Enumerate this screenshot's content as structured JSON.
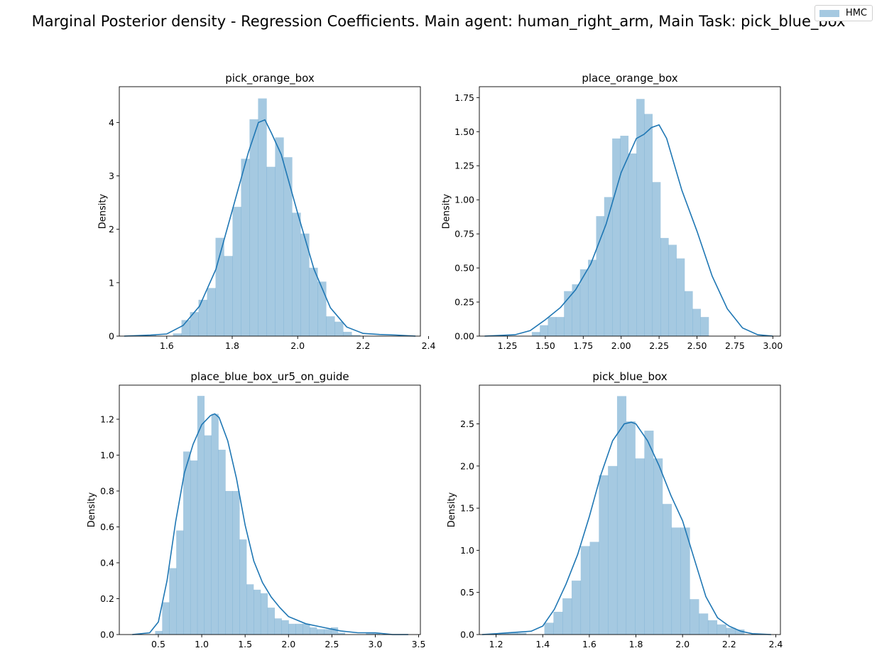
{
  "figure": {
    "suptitle": "Marginal Posterior density - Regression Coefficients. Main agent: human_right_arm, Main Task: pick_blue_box",
    "legend": [
      {
        "label": "HMC",
        "color": "#1f77b4"
      }
    ]
  },
  "chart_data": [
    {
      "type": "bar",
      "title": "pick_orange_box",
      "xlabel": "",
      "ylabel": "Density",
      "xlim": [
        1.455,
        2.375
      ],
      "ylim": [
        0,
        4.67
      ],
      "xticks": [
        1.6,
        1.8,
        2.0,
        2.2,
        2.4
      ],
      "xtick_labels": [
        "1.6",
        "1.8",
        "2.0",
        "2.2",
        "2.4"
      ],
      "yticks": [
        0,
        1,
        2,
        3,
        4
      ],
      "ytick_labels": [
        "0",
        "1",
        "2",
        "3",
        "4"
      ],
      "bin_edges": [
        1.515,
        1.541,
        1.567,
        1.593,
        1.619,
        1.645,
        1.671,
        1.697,
        1.723,
        1.749,
        1.775,
        1.801,
        1.827,
        1.853,
        1.879,
        1.905,
        1.931,
        1.957,
        1.983,
        2.009,
        2.035,
        2.061,
        2.087,
        2.113,
        2.139,
        2.165,
        2.191
      ],
      "bin_values": [
        0.02,
        0.02,
        0.0,
        0.0,
        0.05,
        0.3,
        0.45,
        0.68,
        0.9,
        1.84,
        1.5,
        2.42,
        3.32,
        4.06,
        4.45,
        3.17,
        3.72,
        3.35,
        2.31,
        1.92,
        1.28,
        1.02,
        0.37,
        0.27,
        0.08,
        0.02
      ],
      "series": [
        {
          "name": "HMC",
          "kde_x": [
            1.47,
            1.55,
            1.6,
            1.65,
            1.7,
            1.75,
            1.8,
            1.85,
            1.88,
            1.9,
            1.92,
            1.95,
            2.0,
            2.05,
            2.1,
            2.15,
            2.2,
            2.25,
            2.3,
            2.36
          ],
          "kde_y": [
            0.0,
            0.02,
            0.04,
            0.2,
            0.56,
            1.25,
            2.35,
            3.45,
            4.0,
            4.05,
            3.8,
            3.4,
            2.3,
            1.25,
            0.53,
            0.17,
            0.05,
            0.03,
            0.02,
            0.0
          ]
        }
      ]
    },
    {
      "type": "bar",
      "title": "place_orange_box",
      "xlabel": "",
      "ylabel": "Density",
      "xlim": [
        1.065,
        3.05
      ],
      "ylim": [
        0,
        1.83
      ],
      "xticks": [
        1.25,
        1.5,
        1.75,
        2.0,
        2.25,
        2.5,
        2.75,
        3.0
      ],
      "xtick_labels": [
        "1.25",
        "1.50",
        "1.75",
        "2.00",
        "2.25",
        "2.50",
        "2.75",
        "3.00"
      ],
      "yticks": [
        0,
        0.25,
        0.5,
        0.75,
        1.0,
        1.25,
        1.5,
        1.75
      ],
      "ytick_labels": [
        "0.00",
        "0.25",
        "0.50",
        "0.75",
        "1.00",
        "1.25",
        "1.50",
        "1.75"
      ],
      "bin_edges": [
        1.358,
        1.411,
        1.464,
        1.517,
        1.57,
        1.623,
        1.676,
        1.729,
        1.782,
        1.835,
        1.888,
        1.941,
        1.994,
        2.047,
        2.1,
        2.153,
        2.206,
        2.259,
        2.312,
        2.365,
        2.418,
        2.471,
        2.524,
        2.577,
        2.63,
        2.683,
        2.736,
        2.789
      ],
      "bin_values": [
        0.0,
        0.03,
        0.08,
        0.14,
        0.14,
        0.33,
        0.38,
        0.49,
        0.56,
        0.88,
        1.02,
        1.45,
        1.47,
        1.34,
        1.74,
        1.63,
        1.13,
        0.72,
        0.67,
        0.57,
        0.33,
        0.2,
        0.14,
        0.0,
        0.0,
        0.0,
        0.0
      ],
      "series": [
        {
          "name": "HMC",
          "kde_x": [
            1.1,
            1.3,
            1.4,
            1.5,
            1.6,
            1.7,
            1.8,
            1.9,
            2.0,
            2.1,
            2.15,
            2.2,
            2.25,
            2.3,
            2.4,
            2.5,
            2.6,
            2.7,
            2.8,
            2.9,
            3.0
          ],
          "kde_y": [
            0.0,
            0.01,
            0.04,
            0.12,
            0.21,
            0.34,
            0.53,
            0.82,
            1.2,
            1.45,
            1.48,
            1.53,
            1.55,
            1.45,
            1.07,
            0.77,
            0.44,
            0.2,
            0.06,
            0.01,
            0.0
          ]
        }
      ]
    },
    {
      "type": "bar",
      "title": "place_blue_box_ur5_on_guide",
      "xlabel": "",
      "ylabel": "Density",
      "xlim": [
        0.05,
        3.52
      ],
      "ylim": [
        0,
        1.39
      ],
      "xticks": [
        0.5,
        1.0,
        1.5,
        2.0,
        2.5,
        3.0,
        3.5
      ],
      "xtick_labels": [
        "0.5",
        "1.0",
        "1.5",
        "2.0",
        "2.5",
        "3.0",
        "3.5"
      ],
      "yticks": [
        0,
        0.2,
        0.4,
        0.6,
        0.8,
        1.0,
        1.2
      ],
      "ytick_labels": [
        "0.0",
        "0.2",
        "0.4",
        "0.6",
        "0.8",
        "1.0",
        "1.2"
      ],
      "bin_edges": [
        0.463,
        0.544,
        0.625,
        0.706,
        0.787,
        0.868,
        0.949,
        1.03,
        1.111,
        1.192,
        1.273,
        1.354,
        1.435,
        1.516,
        1.597,
        1.678,
        1.759,
        1.84,
        1.921,
        2.002,
        2.083,
        2.164,
        2.245,
        2.326,
        2.407,
        2.488,
        2.569,
        2.65,
        2.731,
        2.812,
        2.893,
        2.974,
        3.055
      ],
      "bin_values": [
        0.02,
        0.18,
        0.37,
        0.58,
        1.02,
        0.97,
        1.33,
        1.11,
        1.23,
        1.03,
        0.8,
        0.8,
        0.53,
        0.28,
        0.25,
        0.23,
        0.15,
        0.09,
        0.08,
        0.06,
        0.06,
        0.06,
        0.04,
        0.03,
        0.03,
        0.04,
        0.01,
        0.0,
        0.0,
        0.0,
        0.01,
        0.01
      ],
      "series": [
        {
          "name": "HMC",
          "kde_x": [
            0.2,
            0.4,
            0.5,
            0.6,
            0.7,
            0.8,
            0.9,
            1.0,
            1.1,
            1.15,
            1.2,
            1.3,
            1.4,
            1.5,
            1.6,
            1.7,
            1.8,
            1.9,
            2.0,
            2.2,
            2.4,
            2.6,
            2.8,
            3.0,
            3.2,
            3.38
          ],
          "kde_y": [
            0.0,
            0.01,
            0.07,
            0.3,
            0.63,
            0.9,
            1.06,
            1.17,
            1.22,
            1.23,
            1.21,
            1.08,
            0.87,
            0.61,
            0.41,
            0.29,
            0.21,
            0.15,
            0.1,
            0.06,
            0.04,
            0.02,
            0.01,
            0.01,
            0.0,
            0.0
          ]
        }
      ]
    },
    {
      "type": "bar",
      "title": "pick_blue_box",
      "xlabel": "",
      "ylabel": "Density",
      "xlim": [
        1.128,
        2.42
      ],
      "ylim": [
        0,
        2.96
      ],
      "xticks": [
        1.2,
        1.4,
        1.6,
        1.8,
        2.0,
        2.2,
        2.4
      ],
      "xtick_labels": [
        "1.2",
        "1.4",
        "1.6",
        "1.8",
        "2.0",
        "2.2",
        "2.4"
      ],
      "yticks": [
        0,
        0.5,
        1.0,
        1.5,
        2.0,
        2.5
      ],
      "ytick_labels": [
        "0.0",
        "0.5",
        "1.0",
        "1.5",
        "2.0",
        "2.5"
      ],
      "bin_edges": [
        1.212,
        1.251,
        1.29,
        1.329,
        1.368,
        1.407,
        1.446,
        1.485,
        1.524,
        1.563,
        1.602,
        1.641,
        1.68,
        1.719,
        1.758,
        1.797,
        1.836,
        1.875,
        1.914,
        1.953,
        1.992,
        2.031,
        2.07,
        2.109,
        2.148,
        2.187,
        2.226,
        2.265
      ],
      "bin_values": [
        0.02,
        0.02,
        0.02,
        0.0,
        0.0,
        0.14,
        0.27,
        0.43,
        0.64,
        1.05,
        1.1,
        1.89,
        2.0,
        2.83,
        2.53,
        2.09,
        2.42,
        2.09,
        1.55,
        1.27,
        1.27,
        0.42,
        0.25,
        0.17,
        0.12,
        0.08,
        0.06
      ],
      "series": [
        {
          "name": "HMC",
          "kde_x": [
            1.14,
            1.2,
            1.25,
            1.3,
            1.35,
            1.4,
            1.45,
            1.5,
            1.55,
            1.6,
            1.65,
            1.7,
            1.75,
            1.78,
            1.8,
            1.85,
            1.9,
            1.95,
            2.0,
            2.05,
            2.1,
            2.15,
            2.2,
            2.25,
            2.3,
            2.38
          ],
          "kde_y": [
            0.0,
            0.01,
            0.02,
            0.03,
            0.04,
            0.1,
            0.3,
            0.6,
            0.95,
            1.4,
            1.9,
            2.3,
            2.5,
            2.52,
            2.5,
            2.3,
            2.0,
            1.65,
            1.35,
            0.9,
            0.45,
            0.2,
            0.1,
            0.04,
            0.01,
            0.0
          ]
        }
      ]
    }
  ],
  "colors": {
    "bar": "#1f77b4",
    "bar_opacity": 0.4,
    "line": "#1f77b4"
  }
}
